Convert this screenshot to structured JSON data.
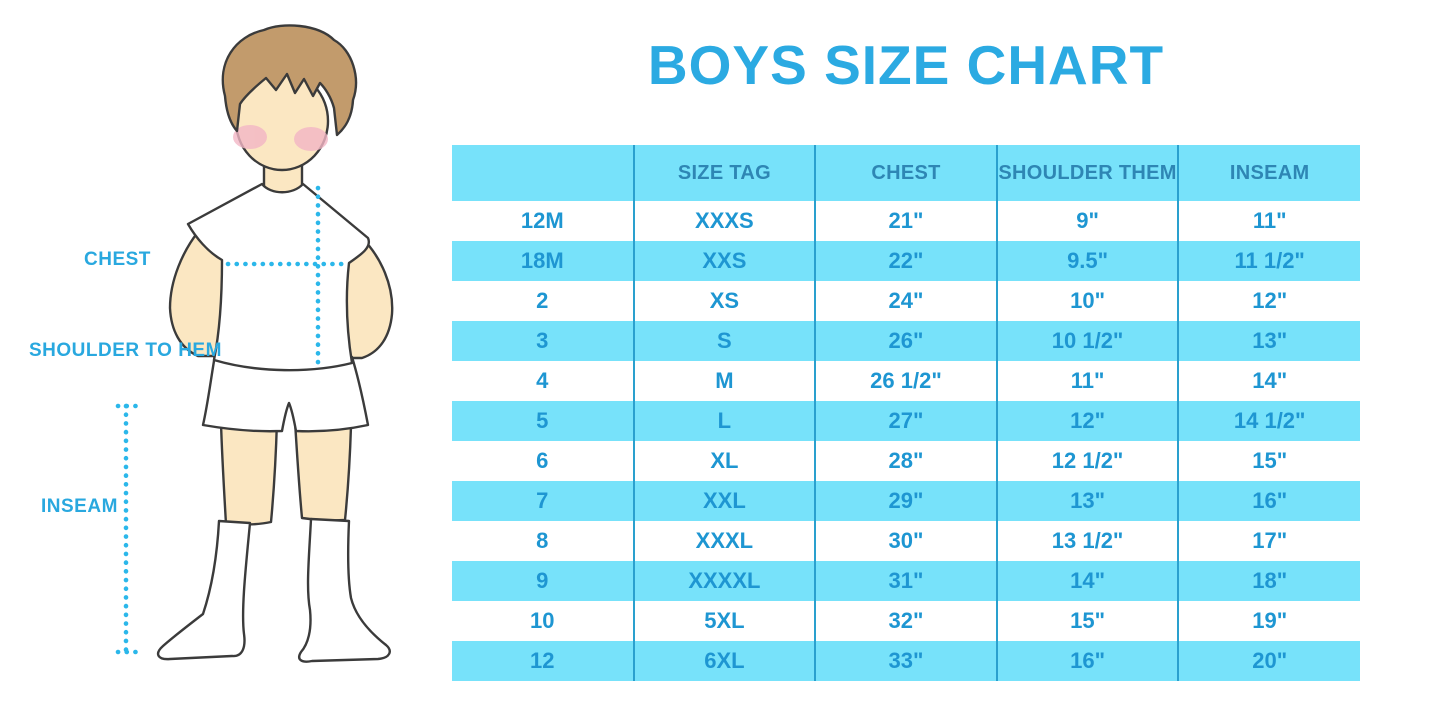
{
  "title": "BOYS SIZE CHART",
  "figure": {
    "chest_label": "CHEST",
    "shoulder_to_hem_label": "SHOULDER TO HEM",
    "inseam_label": "INSEAM"
  },
  "colors": {
    "title_blue": "#2BAAE2",
    "label_blue": "#29A8DF",
    "stripe_blue": "#77E2FA",
    "header_text_blue": "#2E86B4",
    "cell_text_blue": "#1E96D2",
    "column_divider_blue": "#2AA0CE",
    "dotted_line_blue": "#2BB7EA",
    "skin": "#FBE7C2",
    "hair_brown": "#C29B6C",
    "blush_pink": "#F3B6C5",
    "outline": "#3B3B3B"
  },
  "chart_data": {
    "type": "table",
    "title": "BOYS SIZE CHART",
    "columns": [
      "",
      "SIZE TAG",
      "CHEST",
      "SHOULDER THEM",
      "INSEAM"
    ],
    "rows": [
      [
        "12M",
        "XXXS",
        "21\"",
        "9\"",
        "11\""
      ],
      [
        "18M",
        "XXS",
        "22\"",
        "9.5\"",
        "11 1/2\""
      ],
      [
        "2",
        "XS",
        "24\"",
        "10\"",
        "12\""
      ],
      [
        "3",
        "S",
        "26\"",
        "10 1/2\"",
        "13\""
      ],
      [
        "4",
        "M",
        "26 1/2\"",
        "11\"",
        "14\""
      ],
      [
        "5",
        "L",
        "27\"",
        "12\"",
        "14 1/2\""
      ],
      [
        "6",
        "XL",
        "28\"",
        "12 1/2\"",
        "15\""
      ],
      [
        "7",
        "XXL",
        "29\"",
        "13\"",
        "16\""
      ],
      [
        "8",
        "XXXL",
        "30\"",
        "13 1/2\"",
        "17\""
      ],
      [
        "9",
        "XXXXL",
        "31\"",
        "14\"",
        "18\""
      ],
      [
        "10",
        "5XL",
        "32\"",
        "15\"",
        "19\""
      ],
      [
        "12",
        "6XL",
        "33\"",
        "16\"",
        "20\""
      ]
    ],
    "layout": {
      "header_background": "#77E2FA",
      "row_striping": "white / light-blue alternating, first data row white",
      "grid": "vertical column dividers only"
    }
  }
}
